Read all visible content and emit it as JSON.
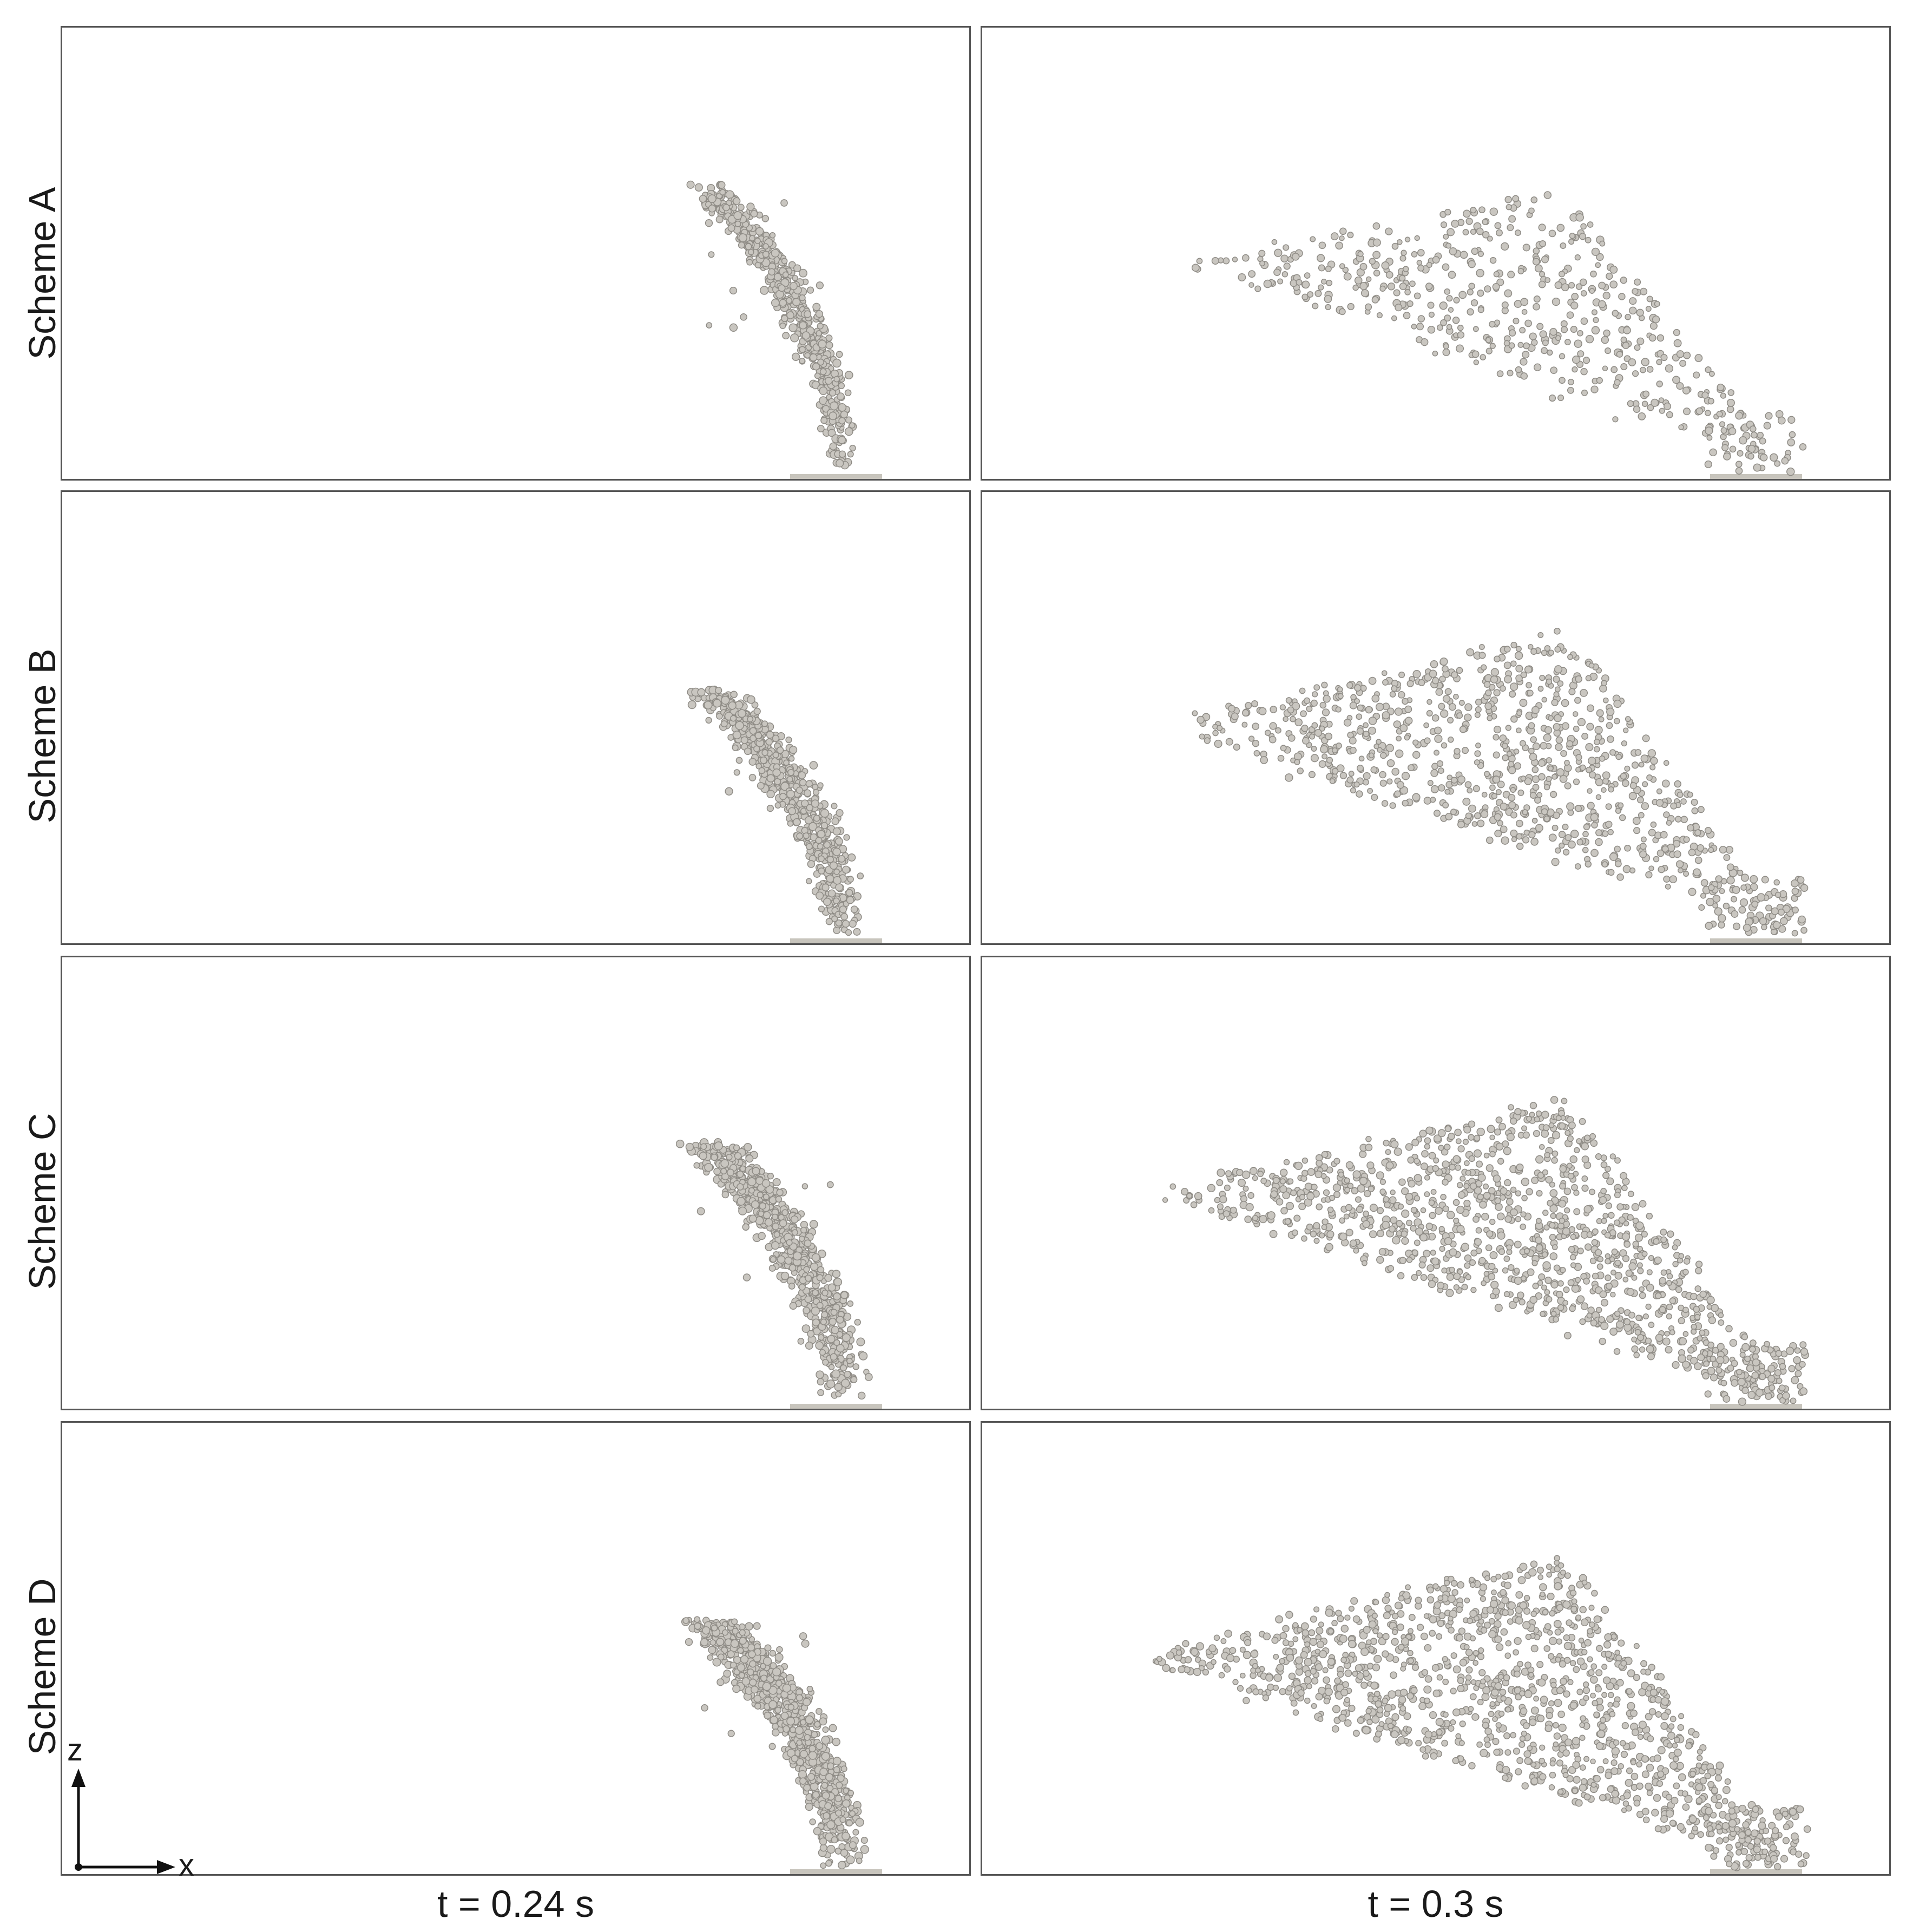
{
  "figure": {
    "rows": [
      {
        "id": "A",
        "label": "Scheme A"
      },
      {
        "id": "B",
        "label": "Scheme B"
      },
      {
        "id": "C",
        "label": "Scheme C"
      },
      {
        "id": "D",
        "label": "Scheme D"
      }
    ],
    "columns": [
      {
        "id": "t024",
        "label": "t = 0.24 s"
      },
      {
        "id": "t03",
        "label": "t = 0.3 s"
      }
    ],
    "axes": {
      "vertical": "z",
      "horizontal": "x"
    },
    "colors": {
      "particle": "#c9c6c0",
      "particle_edge": "#8f8c86",
      "frame": "#555555",
      "plate": "#c8c5bd"
    }
  }
}
